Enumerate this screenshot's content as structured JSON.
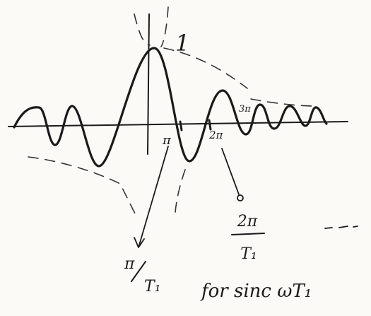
{
  "labels": {
    "peak": "1",
    "pi": "π",
    "two_pi": "2π",
    "three_pi": "3π"
  },
  "annotations": {
    "pi_over_t1": {
      "numerator": "π",
      "denominator": "T₁"
    },
    "two_pi_over_t1": {
      "numerator": "2π",
      "denominator": "T₁"
    }
  },
  "caption": "for sinc ωT₁"
}
